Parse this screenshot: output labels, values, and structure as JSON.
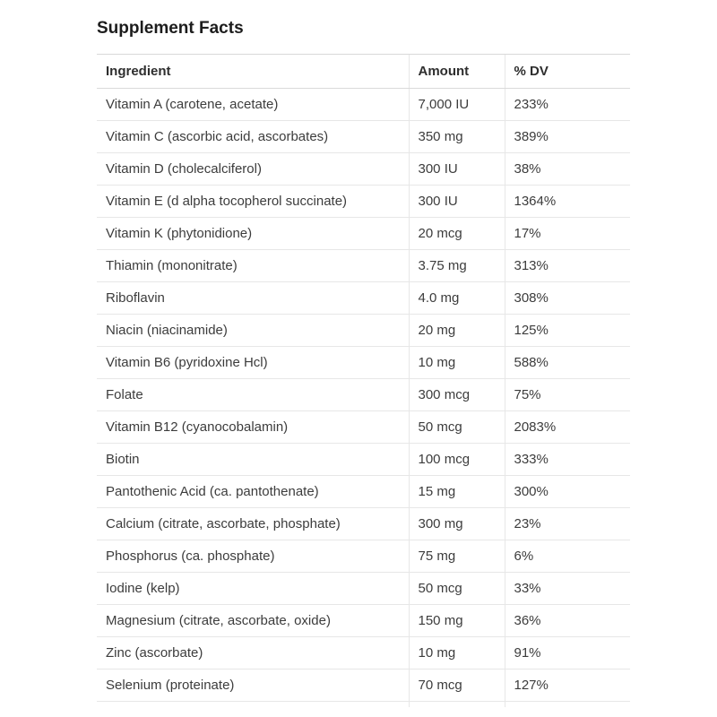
{
  "page": {
    "title": "Supplement Facts"
  },
  "table": {
    "columns": [
      "Ingredient",
      "Amount",
      "% DV"
    ],
    "rows": [
      {
        "ingredient": "Vitamin A (carotene, acetate)",
        "amount": "7,000 IU",
        "dv": "233%"
      },
      {
        "ingredient": "Vitamin C (ascorbic acid, ascorbates)",
        "amount": "350 mg",
        "dv": "389%"
      },
      {
        "ingredient": "Vitamin D (cholecalciferol)",
        "amount": "300 IU",
        "dv": "38%"
      },
      {
        "ingredient": "Vitamin E (d alpha tocopherol succinate)",
        "amount": "300 IU",
        "dv": "1364%"
      },
      {
        "ingredient": "Vitamin K (phytonidione)",
        "amount": "20 mcg",
        "dv": "17%"
      },
      {
        "ingredient": "Thiamin (mononitrate)",
        "amount": "3.75 mg",
        "dv": "313%"
      },
      {
        "ingredient": "Riboflavin",
        "amount": "4.0 mg",
        "dv": "308%"
      },
      {
        "ingredient": "Niacin (niacinamide)",
        "amount": "20 mg",
        "dv": "125%"
      },
      {
        "ingredient": "Vitamin B6 (pyridoxine Hcl)",
        "amount": "10 mg",
        "dv": "588%"
      },
      {
        "ingredient": "Folate",
        "amount": "300 mcg",
        "dv": "75%"
      },
      {
        "ingredient": "Vitamin B12 (cyanocobalamin)",
        "amount": "50 mcg",
        "dv": "2083%"
      },
      {
        "ingredient": "Biotin",
        "amount": "100 mcg",
        "dv": "333%"
      },
      {
        "ingredient": "Pantothenic Acid (ca. pantothenate)",
        "amount": "15 mg",
        "dv": "300%"
      },
      {
        "ingredient": "Calcium (citrate, ascorbate, phosphate)",
        "amount": "300 mg",
        "dv": "23%"
      },
      {
        "ingredient": "Phosphorus (ca. phosphate)",
        "amount": "75 mg",
        "dv": "6%"
      },
      {
        "ingredient": "Iodine (kelp)",
        "amount": "50 mcg",
        "dv": "33%"
      },
      {
        "ingredient": "Magnesium (citrate, ascorbate, oxide)",
        "amount": "150 mg",
        "dv": "36%"
      },
      {
        "ingredient": "Zinc (ascorbate)",
        "amount": "10 mg",
        "dv": "91%"
      },
      {
        "ingredient": "Selenium (proteinate)",
        "amount": "70 mcg",
        "dv": "127%"
      }
    ]
  },
  "colors": {
    "text": "#3c3c3c",
    "title": "#1c1c1c",
    "row_border": "#e7e7e7",
    "header_border": "#d9d9d9",
    "background": "#ffffff"
  }
}
